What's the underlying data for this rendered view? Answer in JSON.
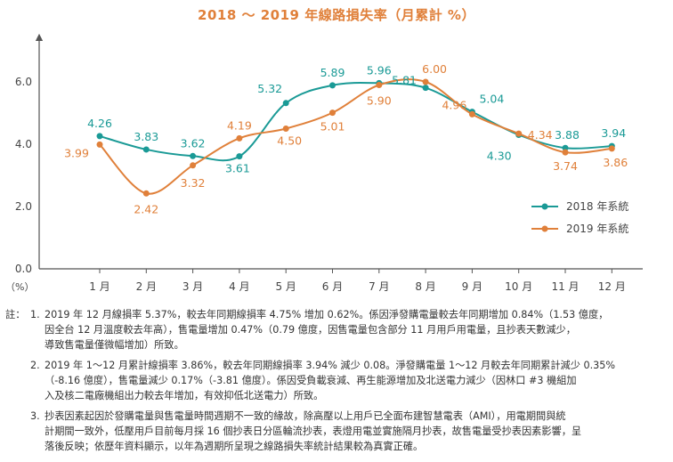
{
  "chart_data": {
    "type": "line",
    "title": "2018 ～ 2019 年線路損失率（月累計 %）",
    "y_unit": "（%）",
    "categories": [
      "1 月",
      "2 月",
      "3 月",
      "4 月",
      "5 月",
      "6 月",
      "7 月",
      "8 月",
      "9 月",
      "10 月",
      "11 月",
      "12 月"
    ],
    "ylim": [
      0,
      7
    ],
    "yticks": [
      "0.0",
      "2.0",
      "4.0",
      "6.0"
    ],
    "ytick_values": [
      0,
      2,
      4,
      6
    ],
    "grid": false,
    "legend_position": "right",
    "series": [
      {
        "name": "2018 年系統",
        "color": "#1a9a96",
        "values": [
          4.26,
          3.83,
          3.62,
          3.61,
          5.32,
          5.89,
          5.96,
          5.81,
          5.04,
          4.3,
          3.88,
          3.94
        ],
        "labels": [
          "4.26",
          "3.83",
          "3.62",
          "3.61",
          "5.32",
          "5.89",
          "5.96",
          "5.81",
          "5.04",
          "4.30",
          "3.88",
          "3.94"
        ]
      },
      {
        "name": "2019 年系統",
        "color": "#e0803a",
        "values": [
          3.99,
          2.42,
          3.32,
          4.19,
          4.5,
          5.01,
          5.9,
          6.0,
          4.96,
          4.34,
          3.74,
          3.86
        ],
        "labels": [
          "3.99",
          "2.42",
          "3.32",
          "4.19",
          "4.50",
          "5.01",
          "5.90",
          "6.00",
          "4.96",
          "4.34",
          "3.74",
          "3.86"
        ]
      }
    ]
  },
  "notes": {
    "prefix": "註：",
    "items": [
      {
        "num": "1.",
        "lines": [
          "2019 年 12 月線損率 5.37%，較去年同期線損率 4.75% 增加 0.62%。係因淨發購電量較去年同期增加 0.84%（1.53 億度，",
          "因全台 12 月溫度較去年高），售電量增加 0.47%（0.79 億度，因售電量包含部分 11 月用戶用電量，且抄表天數減少，",
          "導致售電量僅微幅增加）所致。"
        ]
      },
      {
        "num": "2.",
        "lines": [
          "2019 年 1～12 月累計線損率 3.86%，較去年同期線損率 3.94% 減少 0.08。淨發購電量 1～12 月較去年同期累計減少 0.35%",
          "（-8.16 億度），售電量減少 0.17%（-3.81 億度）。係因受負載衰減、再生能源增加及北送電力減少（因林口 #3 機組加",
          "入及核二電廠機組出力較去年增加，有效抑低北送電力）所致。"
        ]
      },
      {
        "num": "3.",
        "lines": [
          "抄表因素起因於發購電量與售電量時間週期不一致的緣故，除高壓以上用戶已全面布建智慧電表（AMI），用電期間與統",
          "計期間一致外，低壓用戶目前每月採 16 個抄表日分區輪流抄表，表燈用電並實施隔月抄表，故售電量受抄表因素影響，呈",
          "落後反映；依歷年資料顯示，以年為週期所呈現之線路損失率統計結果較為真實正確。"
        ]
      }
    ]
  }
}
